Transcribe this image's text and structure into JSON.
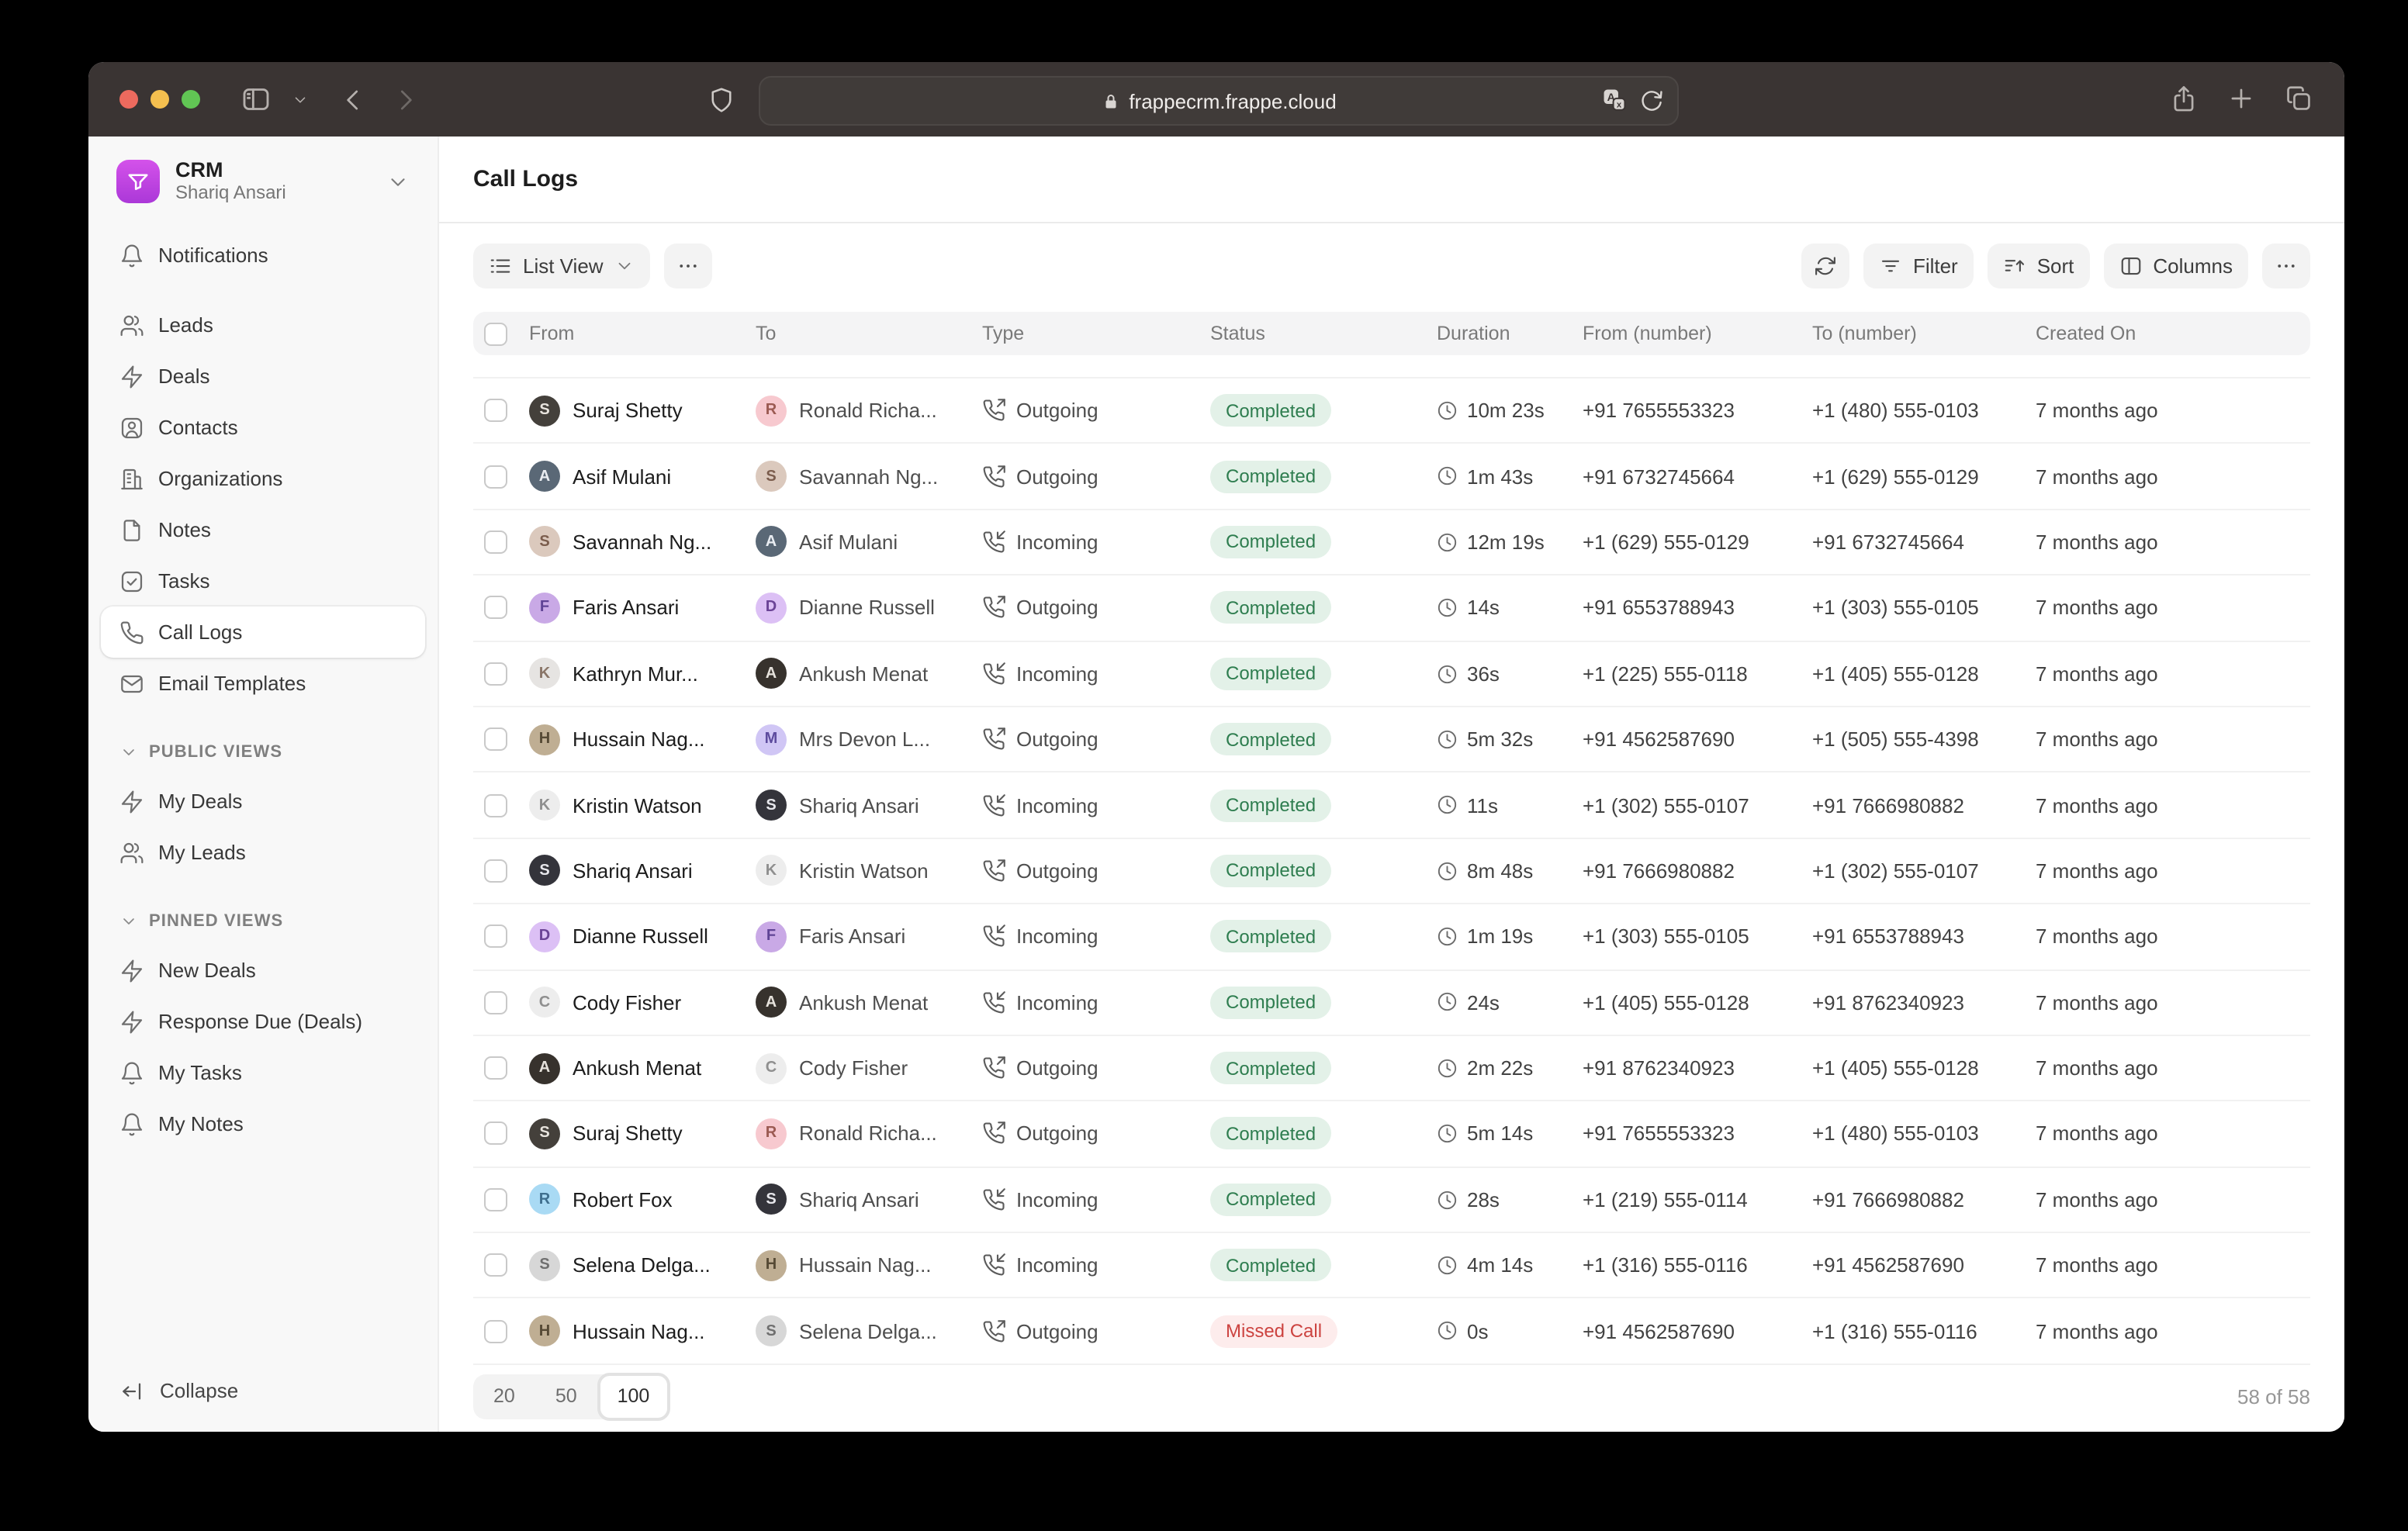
{
  "browser": {
    "url": "frappecrm.frappe.cloud",
    "traffic_lights": [
      "#ec6a5e",
      "#f4bf4f",
      "#61c554"
    ]
  },
  "sidebar": {
    "workspace": {
      "title": "CRM",
      "subtitle": "Shariq Ansari"
    },
    "nav": [
      {
        "icon": "bell",
        "label": "Notifications",
        "gap_after": true
      },
      {
        "icon": "users",
        "label": "Leads"
      },
      {
        "icon": "zap",
        "label": "Deals"
      },
      {
        "icon": "contact",
        "label": "Contacts"
      },
      {
        "icon": "building",
        "label": "Organizations"
      },
      {
        "icon": "file",
        "label": "Notes"
      },
      {
        "icon": "check-square",
        "label": "Tasks"
      },
      {
        "icon": "phone",
        "label": "Call Logs",
        "active": true
      },
      {
        "icon": "mail",
        "label": "Email Templates"
      }
    ],
    "sections": [
      {
        "title": "PUBLIC VIEWS",
        "items": [
          {
            "icon": "zap",
            "label": "My Deals"
          },
          {
            "icon": "users",
            "label": "My Leads"
          }
        ]
      },
      {
        "title": "PINNED VIEWS",
        "items": [
          {
            "icon": "zap",
            "label": "New Deals"
          },
          {
            "icon": "zap",
            "label": "Response Due (Deals)"
          },
          {
            "icon": "bell",
            "label": "My Tasks"
          },
          {
            "icon": "bell",
            "label": "My Notes"
          }
        ]
      }
    ],
    "collapse_label": "Collapse"
  },
  "main": {
    "title": "Call Logs",
    "toolbar": {
      "view_label": "List View",
      "filter_label": "Filter",
      "sort_label": "Sort",
      "columns_label": "Columns"
    },
    "table": {
      "columns": [
        "From",
        "To",
        "Type",
        "Status",
        "Duration",
        "From (number)",
        "To (number)",
        "Created On"
      ],
      "status_colors": {
        "Completed": {
          "bg": "#e3f1e8",
          "fg": "#2e7d4f"
        },
        "Missed Call": {
          "bg": "#fdecec",
          "fg": "#cc4340"
        }
      },
      "rows": [
        {
          "from": {
            "name": "Suraj Shetty",
            "avatar": {
              "initial": "S",
              "bg": "#44403b",
              "fg": "#e8e4de"
            }
          },
          "to": {
            "name": "Ronald Richa...",
            "avatar": {
              "initial": "R",
              "bg": "#f7c9cf",
              "fg": "#9b5a52"
            }
          },
          "type": "Outgoing",
          "status": "Completed",
          "duration": "10m 23s",
          "from_number": "+91 7655553323",
          "to_number": "+1 (480) 555-0103",
          "created": "7 months ago"
        },
        {
          "from": {
            "name": "Asif Mulani",
            "avatar": {
              "initial": "A",
              "bg": "#5a6876",
              "fg": "#e9edf2"
            }
          },
          "to": {
            "name": "Savannah Ng...",
            "avatar": {
              "initial": "S",
              "bg": "#dbc9bd",
              "fg": "#7b5d4d"
            }
          },
          "type": "Outgoing",
          "status": "Completed",
          "duration": "1m 43s",
          "from_number": "+91 6732745664",
          "to_number": "+1 (629) 555-0129",
          "created": "7 months ago"
        },
        {
          "from": {
            "name": "Savannah Ng...",
            "avatar": {
              "initial": "S",
              "bg": "#dbc9bd",
              "fg": "#7b5d4d"
            }
          },
          "to": {
            "name": "Asif Mulani",
            "avatar": {
              "initial": "A",
              "bg": "#5a6876",
              "fg": "#e9edf2"
            }
          },
          "type": "Incoming",
          "status": "Completed",
          "duration": "12m 19s",
          "from_number": "+1 (629) 555-0129",
          "to_number": "+91 6732745664",
          "created": "7 months ago"
        },
        {
          "from": {
            "name": "Faris Ansari",
            "avatar": {
              "initial": "F",
              "bg": "#c9a9e6",
              "fg": "#5f4395"
            }
          },
          "to": {
            "name": "Dianne Russell",
            "avatar": {
              "initial": "D",
              "bg": "#dcc0f5",
              "fg": "#6b4396"
            }
          },
          "type": "Outgoing",
          "status": "Completed",
          "duration": "14s",
          "from_number": "+91 6553788943",
          "to_number": "+1 (303) 555-0105",
          "created": "7 months ago"
        },
        {
          "from": {
            "name": "Kathryn Mur...",
            "avatar": {
              "initial": "K",
              "bg": "#e6e4e2",
              "fg": "#8a7668"
            }
          },
          "to": {
            "name": "Ankush Menat",
            "avatar": {
              "initial": "A",
              "bg": "#37322d",
              "fg": "#e6e2dc"
            }
          },
          "type": "Incoming",
          "status": "Completed",
          "duration": "36s",
          "from_number": "+1 (225) 555-0118",
          "to_number": "+1 (405) 555-0128",
          "created": "7 months ago"
        },
        {
          "from": {
            "name": "Hussain Nag...",
            "avatar": {
              "initial": "H",
              "bg": "#bfae93",
              "fg": "#564a35"
            }
          },
          "to": {
            "name": "Mrs Devon L...",
            "avatar": {
              "initial": "M",
              "bg": "#d0c6f5",
              "fg": "#5d4b9e"
            }
          },
          "type": "Outgoing",
          "status": "Completed",
          "duration": "5m 32s",
          "from_number": "+91 4562587690",
          "to_number": "+1 (505) 555-4398",
          "created": "7 months ago"
        },
        {
          "from": {
            "name": "Kristin Watson",
            "avatar": {
              "initial": "K",
              "bg": "#ededed",
              "fg": "#8f8f8f"
            }
          },
          "to": {
            "name": "Shariq Ansari",
            "avatar": {
              "initial": "S",
              "bg": "#34343b",
              "fg": "#e7e7ec"
            }
          },
          "type": "Incoming",
          "status": "Completed",
          "duration": "11s",
          "from_number": "+1 (302) 555-0107",
          "to_number": "+91 7666980882",
          "created": "7 months ago"
        },
        {
          "from": {
            "name": "Shariq Ansari",
            "avatar": {
              "initial": "S",
              "bg": "#34343b",
              "fg": "#e7e7ec"
            }
          },
          "to": {
            "name": "Kristin Watson",
            "avatar": {
              "initial": "K",
              "bg": "#ededed",
              "fg": "#8f8f8f"
            }
          },
          "type": "Outgoing",
          "status": "Completed",
          "duration": "8m 48s",
          "from_number": "+91 7666980882",
          "to_number": "+1 (302) 555-0107",
          "created": "7 months ago"
        },
        {
          "from": {
            "name": "Dianne Russell",
            "avatar": {
              "initial": "D",
              "bg": "#dcc0f5",
              "fg": "#6b4396"
            }
          },
          "to": {
            "name": "Faris Ansari",
            "avatar": {
              "initial": "F",
              "bg": "#c9a9e6",
              "fg": "#5f4395"
            }
          },
          "type": "Incoming",
          "status": "Completed",
          "duration": "1m 19s",
          "from_number": "+1 (303) 555-0105",
          "to_number": "+91 6553788943",
          "created": "7 months ago"
        },
        {
          "from": {
            "name": "Cody Fisher",
            "avatar": {
              "initial": "C",
              "bg": "#ededed",
              "fg": "#8f8f8f"
            }
          },
          "to": {
            "name": "Ankush Menat",
            "avatar": {
              "initial": "A",
              "bg": "#37322d",
              "fg": "#e6e2dc"
            }
          },
          "type": "Incoming",
          "status": "Completed",
          "duration": "24s",
          "from_number": "+1 (405) 555-0128",
          "to_number": "+91 8762340923",
          "created": "7 months ago"
        },
        {
          "from": {
            "name": "Ankush Menat",
            "avatar": {
              "initial": "A",
              "bg": "#37322d",
              "fg": "#e6e2dc"
            }
          },
          "to": {
            "name": "Cody Fisher",
            "avatar": {
              "initial": "C",
              "bg": "#ededed",
              "fg": "#8f8f8f"
            }
          },
          "type": "Outgoing",
          "status": "Completed",
          "duration": "2m 22s",
          "from_number": "+91 8762340923",
          "to_number": "+1 (405) 555-0128",
          "created": "7 months ago"
        },
        {
          "from": {
            "name": "Suraj Shetty",
            "avatar": {
              "initial": "S",
              "bg": "#44403b",
              "fg": "#e8e4de"
            }
          },
          "to": {
            "name": "Ronald Richa...",
            "avatar": {
              "initial": "R",
              "bg": "#f7c9cf",
              "fg": "#9b5a52"
            }
          },
          "type": "Outgoing",
          "status": "Completed",
          "duration": "5m 14s",
          "from_number": "+91 7655553323",
          "to_number": "+1 (480) 555-0103",
          "created": "7 months ago"
        },
        {
          "from": {
            "name": "Robert Fox",
            "avatar": {
              "initial": "R",
              "bg": "#a9daf4",
              "fg": "#3f6f8e"
            }
          },
          "to": {
            "name": "Shariq Ansari",
            "avatar": {
              "initial": "S",
              "bg": "#34343b",
              "fg": "#e7e7ec"
            }
          },
          "type": "Incoming",
          "status": "Completed",
          "duration": "28s",
          "from_number": "+1 (219) 555-0114",
          "to_number": "+91 7666980882",
          "created": "7 months ago"
        },
        {
          "from": {
            "name": "Selena Delga...",
            "avatar": {
              "initial": "S",
              "bg": "#d7d7d7",
              "fg": "#6f6f6f"
            }
          },
          "to": {
            "name": "Hussain Nag...",
            "avatar": {
              "initial": "H",
              "bg": "#bfae93",
              "fg": "#564a35"
            }
          },
          "type": "Incoming",
          "status": "Completed",
          "duration": "4m 14s",
          "from_number": "+1 (316) 555-0116",
          "to_number": "+91 4562587690",
          "created": "7 months ago"
        },
        {
          "from": {
            "name": "Hussain Nag...",
            "avatar": {
              "initial": "H",
              "bg": "#bfae93",
              "fg": "#564a35"
            }
          },
          "to": {
            "name": "Selena Delga...",
            "avatar": {
              "initial": "S",
              "bg": "#d7d7d7",
              "fg": "#6f6f6f"
            }
          },
          "type": "Outgoing",
          "status": "Missed Call",
          "duration": "0s",
          "from_number": "+91 4562587690",
          "to_number": "+1 (316) 555-0116",
          "created": "7 months ago"
        }
      ]
    },
    "pagination": {
      "options": [
        "20",
        "50",
        "100"
      ],
      "selected": "100",
      "count": "58 of 58"
    }
  }
}
